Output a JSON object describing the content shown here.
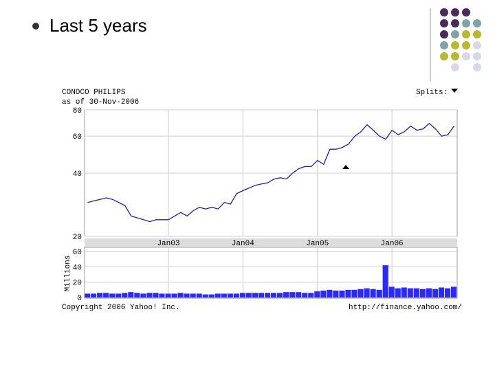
{
  "slide": {
    "bullet": "Last 5 years"
  },
  "footer": {
    "copyright": "Copyright 2006 Yahoo! Inc.",
    "url": "http://finance.yahoo.com/"
  },
  "chart_data": [
    {
      "type": "line",
      "title": "CONOCO PHILIPS",
      "subtitle": "as of 30-Nov-2006",
      "splits_label": "Splits:",
      "x": [
        "2001-12",
        "2002-01",
        "2002-02",
        "2002-03",
        "2002-04",
        "2002-05",
        "2002-06",
        "2002-07",
        "2002-08",
        "2002-09",
        "2002-10",
        "2002-11",
        "2002-12",
        "2003-01",
        "2003-02",
        "2003-03",
        "2003-04",
        "2003-05",
        "2003-06",
        "2003-07",
        "2003-08",
        "2003-09",
        "2003-10",
        "2003-11",
        "2003-12",
        "2004-01",
        "2004-02",
        "2004-03",
        "2004-04",
        "2004-05",
        "2004-06",
        "2004-07",
        "2004-08",
        "2004-09",
        "2004-10",
        "2004-11",
        "2004-12",
        "2005-01",
        "2005-02",
        "2005-03",
        "2005-04",
        "2005-05",
        "2005-06",
        "2005-07",
        "2005-08",
        "2005-09",
        "2005-10",
        "2005-11",
        "2005-12",
        "2006-01",
        "2006-02",
        "2006-03",
        "2006-04",
        "2006-05",
        "2006-06",
        "2006-07",
        "2006-08",
        "2006-09",
        "2006-10",
        "2006-11"
      ],
      "values": [
        29,
        29.5,
        30,
        30.5,
        30,
        29,
        28,
        25,
        24.5,
        24,
        23.5,
        24,
        24,
        24,
        25,
        26,
        25,
        26.5,
        27.5,
        27,
        27.5,
        27,
        29,
        28.5,
        32,
        33,
        34,
        35,
        35.5,
        36,
        37.5,
        38,
        37.5,
        40,
        42,
        43,
        43,
        46,
        44,
        52,
        52,
        53,
        55,
        60,
        63,
        68,
        64,
        60,
        58,
        64,
        61,
        63,
        67,
        64,
        65,
        69,
        65,
        60,
        61,
        67
      ],
      "color": "#1f1fa8",
      "ylim": [
        20,
        80
      ],
      "yticks": [
        20,
        40,
        60,
        80
      ],
      "log_scale": true,
      "grid": true,
      "xticks": [
        {
          "value": "2003-01",
          "label": "Jan03"
        },
        {
          "value": "2004-01",
          "label": "Jan04"
        },
        {
          "value": "2005-01",
          "label": "Jan05"
        },
        {
          "value": "2006-01",
          "label": "Jan06"
        }
      ]
    },
    {
      "type": "bar",
      "y_label": "Millions",
      "x": [
        "2001-12",
        "2002-01",
        "2002-02",
        "2002-03",
        "2002-04",
        "2002-05",
        "2002-06",
        "2002-07",
        "2002-08",
        "2002-09",
        "2002-10",
        "2002-11",
        "2002-12",
        "2003-01",
        "2003-02",
        "2003-03",
        "2003-04",
        "2003-05",
        "2003-06",
        "2003-07",
        "2003-08",
        "2003-09",
        "2003-10",
        "2003-11",
        "2003-12",
        "2004-01",
        "2004-02",
        "2004-03",
        "2004-04",
        "2004-05",
        "2004-06",
        "2004-07",
        "2004-08",
        "2004-09",
        "2004-10",
        "2004-11",
        "2004-12",
        "2005-01",
        "2005-02",
        "2005-03",
        "2005-04",
        "2005-05",
        "2005-06",
        "2005-07",
        "2005-08",
        "2005-09",
        "2005-10",
        "2005-11",
        "2005-12",
        "2006-01",
        "2006-02",
        "2006-03",
        "2006-04",
        "2006-05",
        "2006-06",
        "2006-07",
        "2006-08",
        "2006-09",
        "2006-10",
        "2006-11"
      ],
      "values": [
        5,
        5,
        6,
        6,
        5,
        5,
        6,
        7,
        6,
        5,
        6,
        6,
        5,
        5,
        5,
        6,
        5,
        5,
        5,
        4,
        4,
        5,
        5,
        5,
        5,
        6,
        6,
        6,
        6,
        6,
        6,
        6,
        7,
        7,
        7,
        6,
        6,
        8,
        9,
        10,
        9,
        9,
        10,
        10,
        11,
        12,
        11,
        10,
        42,
        14,
        12,
        13,
        12,
        12,
        11,
        12,
        11,
        13,
        12,
        14
      ],
      "color": "#2a2aff",
      "ylim": [
        0,
        60
      ],
      "yticks": [
        0,
        20,
        40,
        60
      ],
      "grid": true
    }
  ]
}
